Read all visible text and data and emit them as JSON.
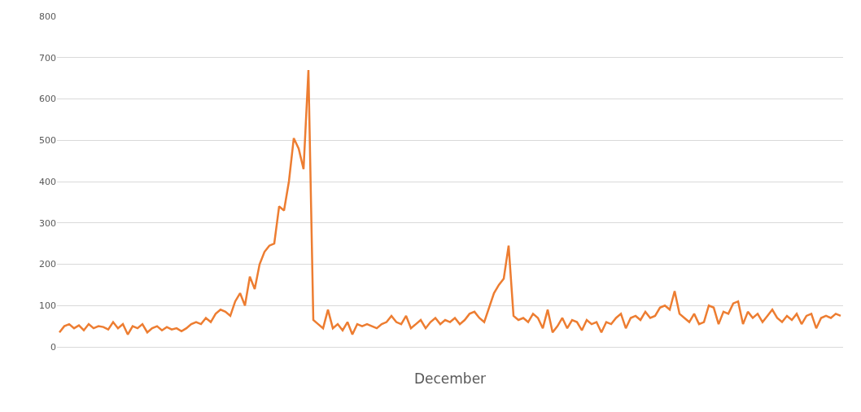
{
  "chart_data": {
    "type": "line",
    "xlabel": "December",
    "categories": [
      null,
      null,
      null,
      null,
      null,
      null,
      null,
      null,
      null,
      null,
      null,
      null,
      null,
      null,
      null,
      null,
      null,
      null,
      null,
      null,
      null,
      null,
      null,
      null,
      null,
      null,
      null,
      null,
      null,
      null,
      null,
      null,
      null,
      null,
      null,
      null,
      null,
      null,
      null,
      null,
      null,
      null,
      null,
      null,
      null,
      null,
      null,
      null,
      null,
      null,
      null,
      null,
      null,
      null,
      null,
      null,
      null,
      null,
      null,
      null,
      null,
      null,
      null,
      null,
      null,
      null,
      null,
      null,
      null,
      null,
      null,
      null,
      null,
      null,
      null,
      null,
      null,
      null,
      null,
      null,
      null,
      null,
      null,
      null,
      null,
      null,
      null,
      null,
      null,
      null,
      null,
      null,
      null,
      null,
      null,
      null,
      null,
      null,
      null,
      null,
      null,
      null,
      null,
      null,
      null,
      null,
      null,
      null,
      null,
      null,
      null,
      null,
      null,
      null,
      null,
      null,
      null,
      null,
      null,
      null,
      null,
      null,
      null,
      null,
      null,
      null,
      null,
      null,
      null,
      null,
      null,
      null,
      null,
      null,
      null,
      null,
      null,
      null,
      null,
      null,
      null,
      null,
      null,
      null,
      null,
      null,
      null,
      null,
      null,
      null,
      null,
      null,
      null,
      null,
      null,
      null,
      null,
      null,
      null,
      null,
      null
    ],
    "series": [
      {
        "color": "#ed7d31",
        "values": [
          35,
          50,
          55,
          45,
          52,
          40,
          55,
          45,
          50,
          48,
          42,
          60,
          45,
          55,
          30,
          50,
          45,
          55,
          35,
          45,
          50,
          40,
          48,
          42,
          45,
          38,
          45,
          55,
          60,
          55,
          70,
          60,
          80,
          90,
          85,
          75,
          110,
          130,
          100,
          170,
          140,
          200,
          230,
          245,
          250,
          340,
          330,
          400,
          505,
          480,
          430,
          670,
          65,
          55,
          45,
          90,
          45,
          55,
          40,
          60,
          30,
          55,
          50,
          55,
          50,
          45,
          55,
          60,
          75,
          60,
          55,
          75,
          45,
          55,
          65,
          45,
          60,
          70,
          55,
          65,
          60,
          70,
          55,
          65,
          80,
          85,
          70,
          60,
          95,
          130,
          150,
          165,
          245,
          75,
          65,
          70,
          60,
          80,
          70,
          45,
          90,
          35,
          50,
          70,
          45,
          65,
          60,
          40,
          65,
          55,
          60,
          35,
          60,
          55,
          70,
          80,
          45,
          70,
          75,
          65,
          85,
          70,
          75,
          95,
          100,
          90,
          135,
          80,
          70,
          60,
          80,
          55,
          60,
          100,
          95,
          55,
          85,
          80,
          105,
          110,
          55,
          85,
          70,
          80,
          60,
          75,
          90,
          70,
          60,
          75,
          65,
          80,
          55,
          75,
          80,
          45,
          70,
          75,
          70,
          80,
          75
        ]
      }
    ],
    "ylim": [
      0,
      800
    ],
    "yticks": [
      0,
      100,
      200,
      300,
      400,
      500,
      600,
      700,
      800
    ],
    "grid": "y",
    "tick_labels": "y",
    "line_style": "solid",
    "marker": "none"
  }
}
